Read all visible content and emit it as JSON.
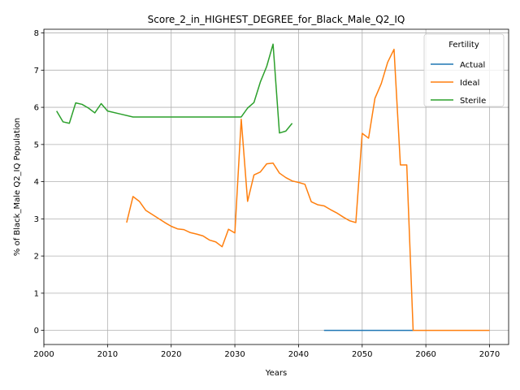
{
  "chart_data": {
    "type": "line",
    "title": "Score_2_in_HIGHEST_DEGREE_for_Black_Male_Q2_IQ",
    "xlabel": "Years",
    "ylabel": "% of Black_Male Q2_IQ Population",
    "xlim": [
      2000,
      2073
    ],
    "ylim": [
      -0.38,
      8.1
    ],
    "xticks": [
      2000,
      2010,
      2020,
      2030,
      2040,
      2050,
      2060,
      2070
    ],
    "yticks": [
      0,
      1,
      2,
      3,
      4,
      5,
      6,
      7,
      8
    ],
    "grid": true,
    "legend": {
      "title": "Fertility",
      "placement": "top-right"
    },
    "series": [
      {
        "name": "Actual",
        "color": "#1f77b4",
        "points": [
          [
            2044,
            0
          ],
          [
            2045,
            0
          ],
          [
            2050,
            0
          ],
          [
            2055,
            0
          ],
          [
            2058,
            0
          ]
        ]
      },
      {
        "name": "Ideal",
        "color": "#ff7f0e",
        "points": [
          [
            2013,
            2.9
          ],
          [
            2014,
            3.6
          ],
          [
            2015,
            3.47
          ],
          [
            2016,
            3.23
          ],
          [
            2017,
            3.12
          ],
          [
            2018,
            3.01
          ],
          [
            2019,
            2.9
          ],
          [
            2020,
            2.8
          ],
          [
            2021,
            2.73
          ],
          [
            2022,
            2.71
          ],
          [
            2023,
            2.63
          ],
          [
            2024,
            2.59
          ],
          [
            2025,
            2.54
          ],
          [
            2026,
            2.43
          ],
          [
            2027,
            2.38
          ],
          [
            2028,
            2.25
          ],
          [
            2029,
            2.72
          ],
          [
            2030,
            2.62
          ],
          [
            2031,
            5.68
          ],
          [
            2032,
            3.47
          ],
          [
            2033,
            4.18
          ],
          [
            2034,
            4.26
          ],
          [
            2035,
            4.48
          ],
          [
            2036,
            4.5
          ],
          [
            2037,
            4.23
          ],
          [
            2038,
            4.11
          ],
          [
            2039,
            4.02
          ],
          [
            2040,
            3.98
          ],
          [
            2041,
            3.93
          ],
          [
            2042,
            3.46
          ],
          [
            2043,
            3.38
          ],
          [
            2044,
            3.35
          ],
          [
            2045,
            3.25
          ],
          [
            2046,
            3.16
          ],
          [
            2047,
            3.05
          ],
          [
            2048,
            2.95
          ],
          [
            2049,
            2.9
          ],
          [
            2050,
            5.3
          ],
          [
            2051,
            5.17
          ],
          [
            2052,
            6.24
          ],
          [
            2053,
            6.64
          ],
          [
            2054,
            7.21
          ],
          [
            2055,
            7.56
          ],
          [
            2056,
            4.45
          ],
          [
            2057,
            4.45
          ],
          [
            2058,
            0
          ],
          [
            2060,
            0
          ],
          [
            2065,
            0
          ],
          [
            2070,
            0
          ]
        ]
      },
      {
        "name": "Sterile",
        "color": "#2ca02c",
        "points": [
          [
            2002,
            5.9
          ],
          [
            2003,
            5.61
          ],
          [
            2004,
            5.57
          ],
          [
            2005,
            6.12
          ],
          [
            2006,
            6.08
          ],
          [
            2007,
            5.98
          ],
          [
            2008,
            5.85
          ],
          [
            2009,
            6.1
          ],
          [
            2010,
            5.9
          ],
          [
            2012,
            5.82
          ],
          [
            2014,
            5.74
          ],
          [
            2020,
            5.74
          ],
          [
            2025,
            5.74
          ],
          [
            2031,
            5.74
          ],
          [
            2032,
            5.98
          ],
          [
            2033,
            6.13
          ],
          [
            2034,
            6.68
          ],
          [
            2035,
            7.1
          ],
          [
            2036,
            7.7
          ],
          [
            2037,
            5.31
          ],
          [
            2038,
            5.36
          ],
          [
            2039,
            5.57
          ]
        ]
      }
    ]
  }
}
